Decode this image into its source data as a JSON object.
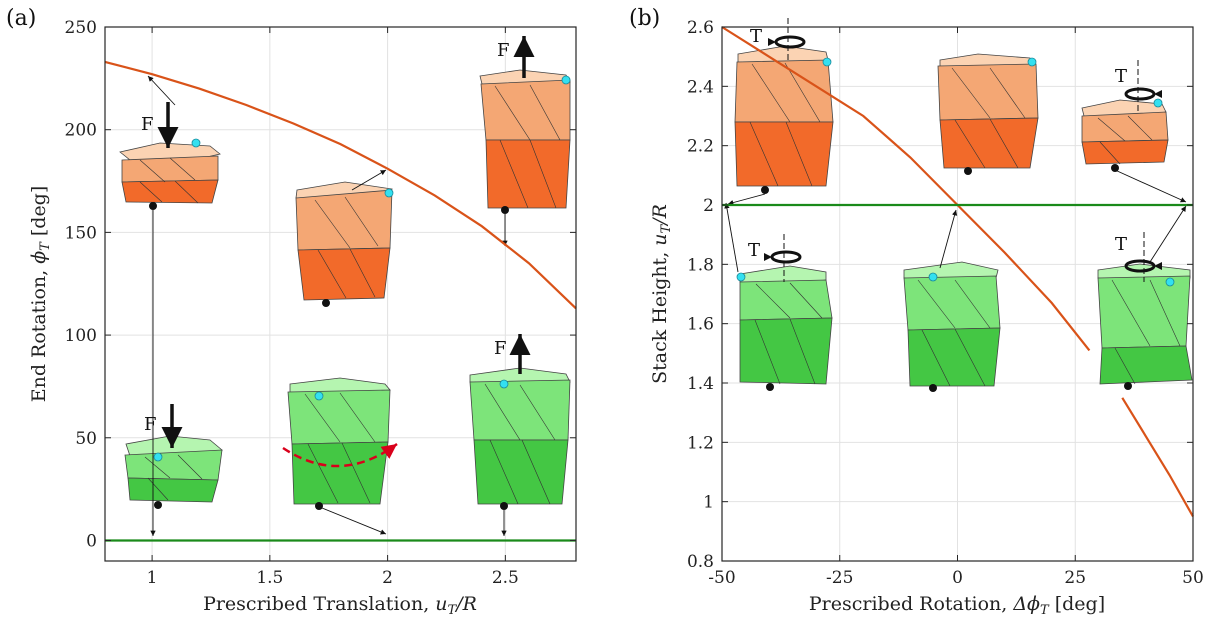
{
  "chart_data": [
    {
      "panel": "(a)",
      "type": "line",
      "xlabel_text": "Prescribed Translation, ",
      "xlabel_math": "u",
      "xlabel_sub": "T",
      "xlabel_tail": "/R",
      "ylabel_text": "End Rotation, ",
      "ylabel_math": "ϕ",
      "ylabel_sub": "T",
      "ylabel_tail": " [deg]",
      "xlim": [
        0.8,
        2.8
      ],
      "ylim": [
        -10,
        250
      ],
      "xticks": [
        1,
        1.5,
        2,
        2.5
      ],
      "xtick_labels": [
        "1",
        "1.5",
        "2",
        "2.5"
      ],
      "yticks": [
        0,
        50,
        100,
        150,
        200,
        250
      ],
      "ytick_labels": [
        "0",
        "50",
        "100",
        "150",
        "200",
        "250"
      ],
      "grid": true,
      "series": [
        {
          "color": "#d95319",
          "x": [
            0.8,
            1.0,
            1.2,
            1.4,
            1.6,
            1.8,
            2.0,
            2.2,
            2.4,
            2.6,
            2.8
          ],
          "y": [
            233,
            227,
            220,
            212,
            203,
            193,
            181,
            168,
            153,
            135,
            113
          ]
        },
        {
          "color": "#1a8a1a",
          "x": [
            0.8,
            2.8
          ],
          "y": [
            0,
            0
          ]
        }
      ],
      "annotations": [
        "F",
        "F",
        "F",
        "F",
        "F"
      ]
    },
    {
      "panel": "(b)",
      "type": "line",
      "xlabel_text": "Prescribed Rotation, ",
      "xlabel_math": "Δϕ",
      "xlabel_sub": "T",
      "xlabel_tail": " [deg]",
      "ylabel_text": "Stack Height, ",
      "ylabel_math": "u",
      "ylabel_sub": "T",
      "ylabel_tail": "/R",
      "xlim": [
        -50,
        50
      ],
      "ylim": [
        0.8,
        2.6
      ],
      "xticks": [
        -50,
        -25,
        0,
        25,
        50
      ],
      "xtick_labels": [
        "-50",
        "-25",
        "0",
        "25",
        "50"
      ],
      "yticks": [
        0.8,
        1.0,
        1.2,
        1.4,
        1.6,
        1.8,
        2.0,
        2.2,
        2.4,
        2.6
      ],
      "ytick_labels": [
        "0.8",
        "1",
        "1.2",
        "1.4",
        "1.6",
        "1.8",
        "2",
        "2.2",
        "2.4",
        "2.6"
      ],
      "grid": true,
      "series": [
        {
          "color": "#d95319",
          "x": [
            -50,
            -40,
            -30,
            -20,
            -10,
            0,
            10,
            20,
            28
          ],
          "y": [
            2.6,
            2.5,
            2.4,
            2.3,
            2.16,
            2.0,
            1.84,
            1.67,
            1.51
          ]
        },
        {
          "color": "#d95319",
          "x": [
            35,
            40,
            45,
            50
          ],
          "y": [
            1.35,
            1.22,
            1.09,
            0.95
          ]
        },
        {
          "color": "#1a8a1a",
          "x": [
            -50,
            50
          ],
          "y": [
            2.0,
            2.0
          ]
        }
      ],
      "annotations": [
        "T",
        "T",
        "T",
        "T"
      ]
    }
  ]
}
